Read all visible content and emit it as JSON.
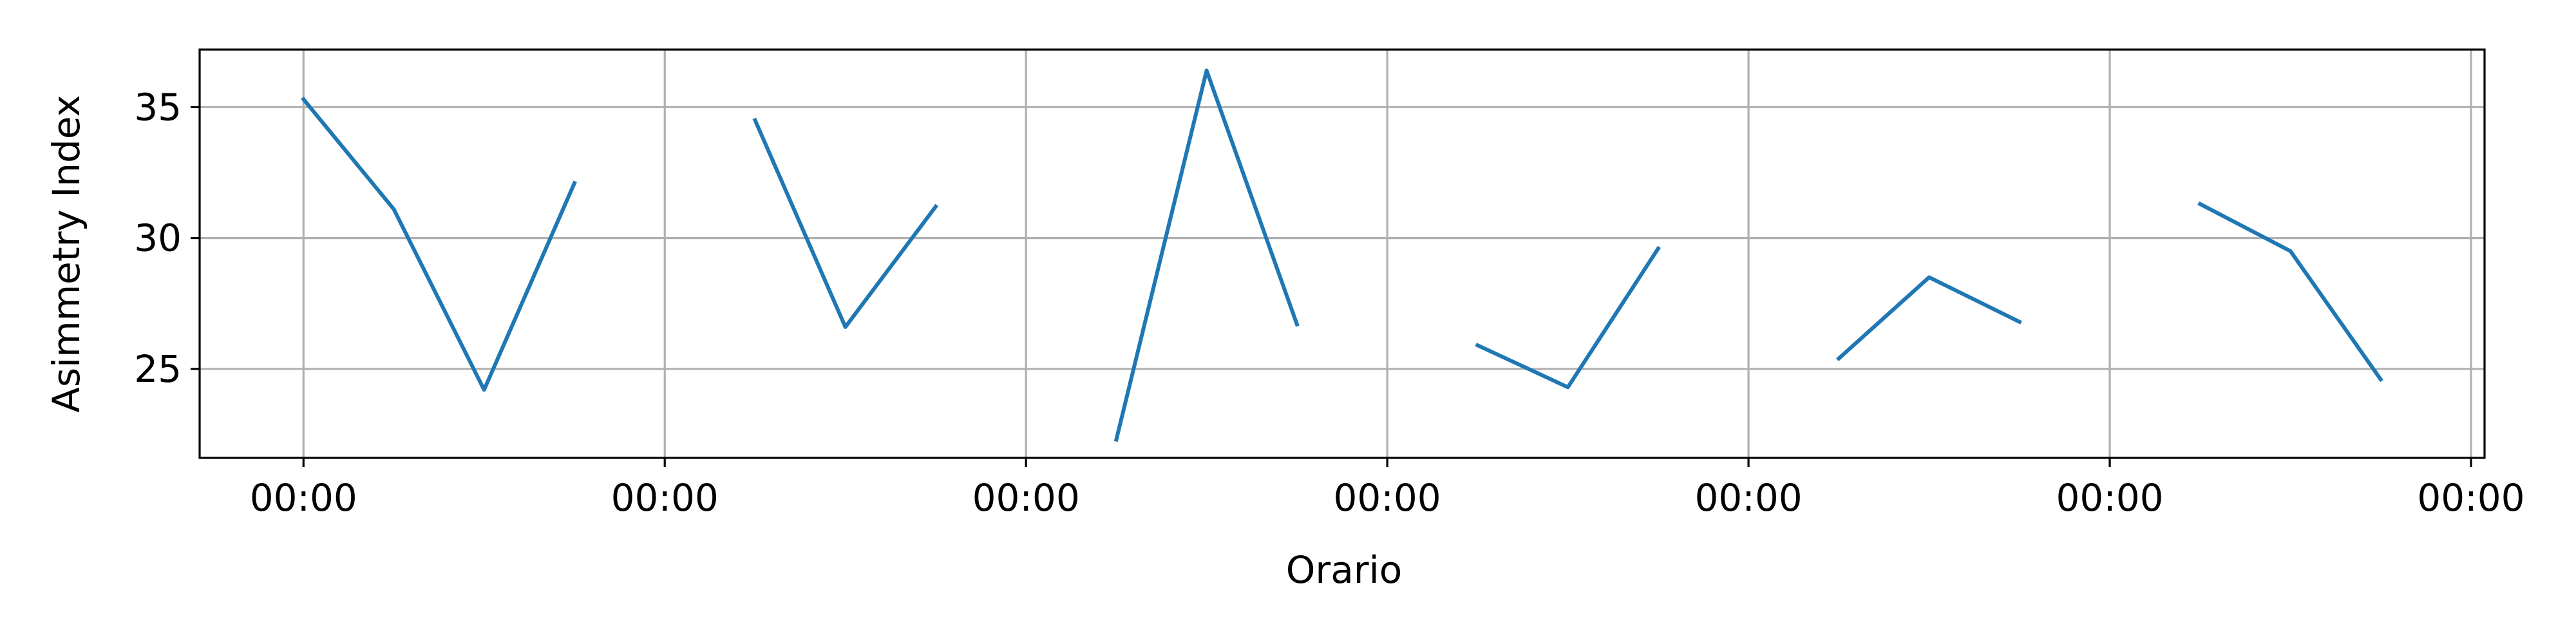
{
  "chart_data": {
    "type": "line",
    "title": "",
    "xlabel": "Orario",
    "ylabel": "Asimmetry Index",
    "x_unit": "hours",
    "xlim": [
      -1.15,
      24.15
    ],
    "ylim": [
      21.6,
      37.2
    ],
    "x_ticks": [
      0,
      4,
      8,
      12,
      16,
      20,
      24
    ],
    "x_tick_labels": [
      "00:00",
      "00:00",
      "00:00",
      "00:00",
      "00:00",
      "00:00",
      "00:00"
    ],
    "y_ticks": [
      25,
      30,
      35
    ],
    "y_tick_labels": [
      "25",
      "30",
      "35"
    ],
    "grid": true,
    "legend": "none",
    "line_color": "#1f77b4",
    "grid_color": "#b0b0b0",
    "segments": [
      {
        "x": [
          0,
          1,
          2,
          3
        ],
        "y": [
          35.3,
          31.1,
          24.2,
          32.1
        ]
      },
      {
        "x": [
          5,
          6,
          7
        ],
        "y": [
          34.5,
          26.6,
          31.2
        ]
      },
      {
        "x": [
          9,
          10,
          11
        ],
        "y": [
          22.3,
          36.4,
          26.7
        ]
      },
      {
        "x": [
          13,
          14,
          15
        ],
        "y": [
          25.9,
          24.3,
          29.6
        ]
      },
      {
        "x": [
          17,
          18,
          19
        ],
        "y": [
          25.4,
          28.5,
          26.8
        ]
      },
      {
        "x": [
          21,
          22,
          23
        ],
        "y": [
          31.3,
          29.5,
          24.6
        ]
      }
    ]
  }
}
